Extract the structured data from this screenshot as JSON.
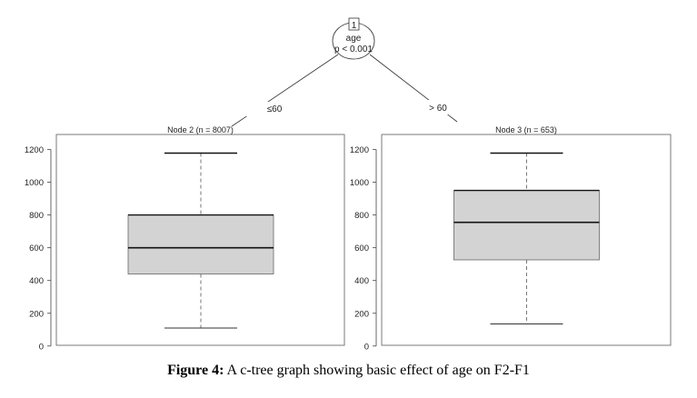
{
  "chart_data": {
    "type": "box",
    "title": "c-tree",
    "root_node": {
      "id": "1",
      "variable": "age",
      "p_value": "p < 0.001"
    },
    "edges": [
      {
        "label": "≤60"
      },
      {
        "label": "> 60"
      }
    ],
    "ylim": [
      0,
      1200
    ],
    "yticks": [
      "0",
      "200",
      "400",
      "600",
      "800",
      "1000",
      "1200"
    ],
    "panels": [
      {
        "title": "Node 2 (n = 8007)",
        "whisker_low": 110,
        "q1": 440,
        "median": 600,
        "q3": 800,
        "whisker_high": 1178
      },
      {
        "title": "Node 3 (n = 653)",
        "whisker_low": 135,
        "q1": 526,
        "median": 755,
        "q3": 950,
        "whisker_high": 1178
      }
    ],
    "colors": {
      "box_fill": "#d3d3d3",
      "frame": "#7a7a7a"
    }
  },
  "caption": {
    "label": "Figure 4:",
    "text": " A c-tree graph showing basic effect of age on F2-F1"
  }
}
